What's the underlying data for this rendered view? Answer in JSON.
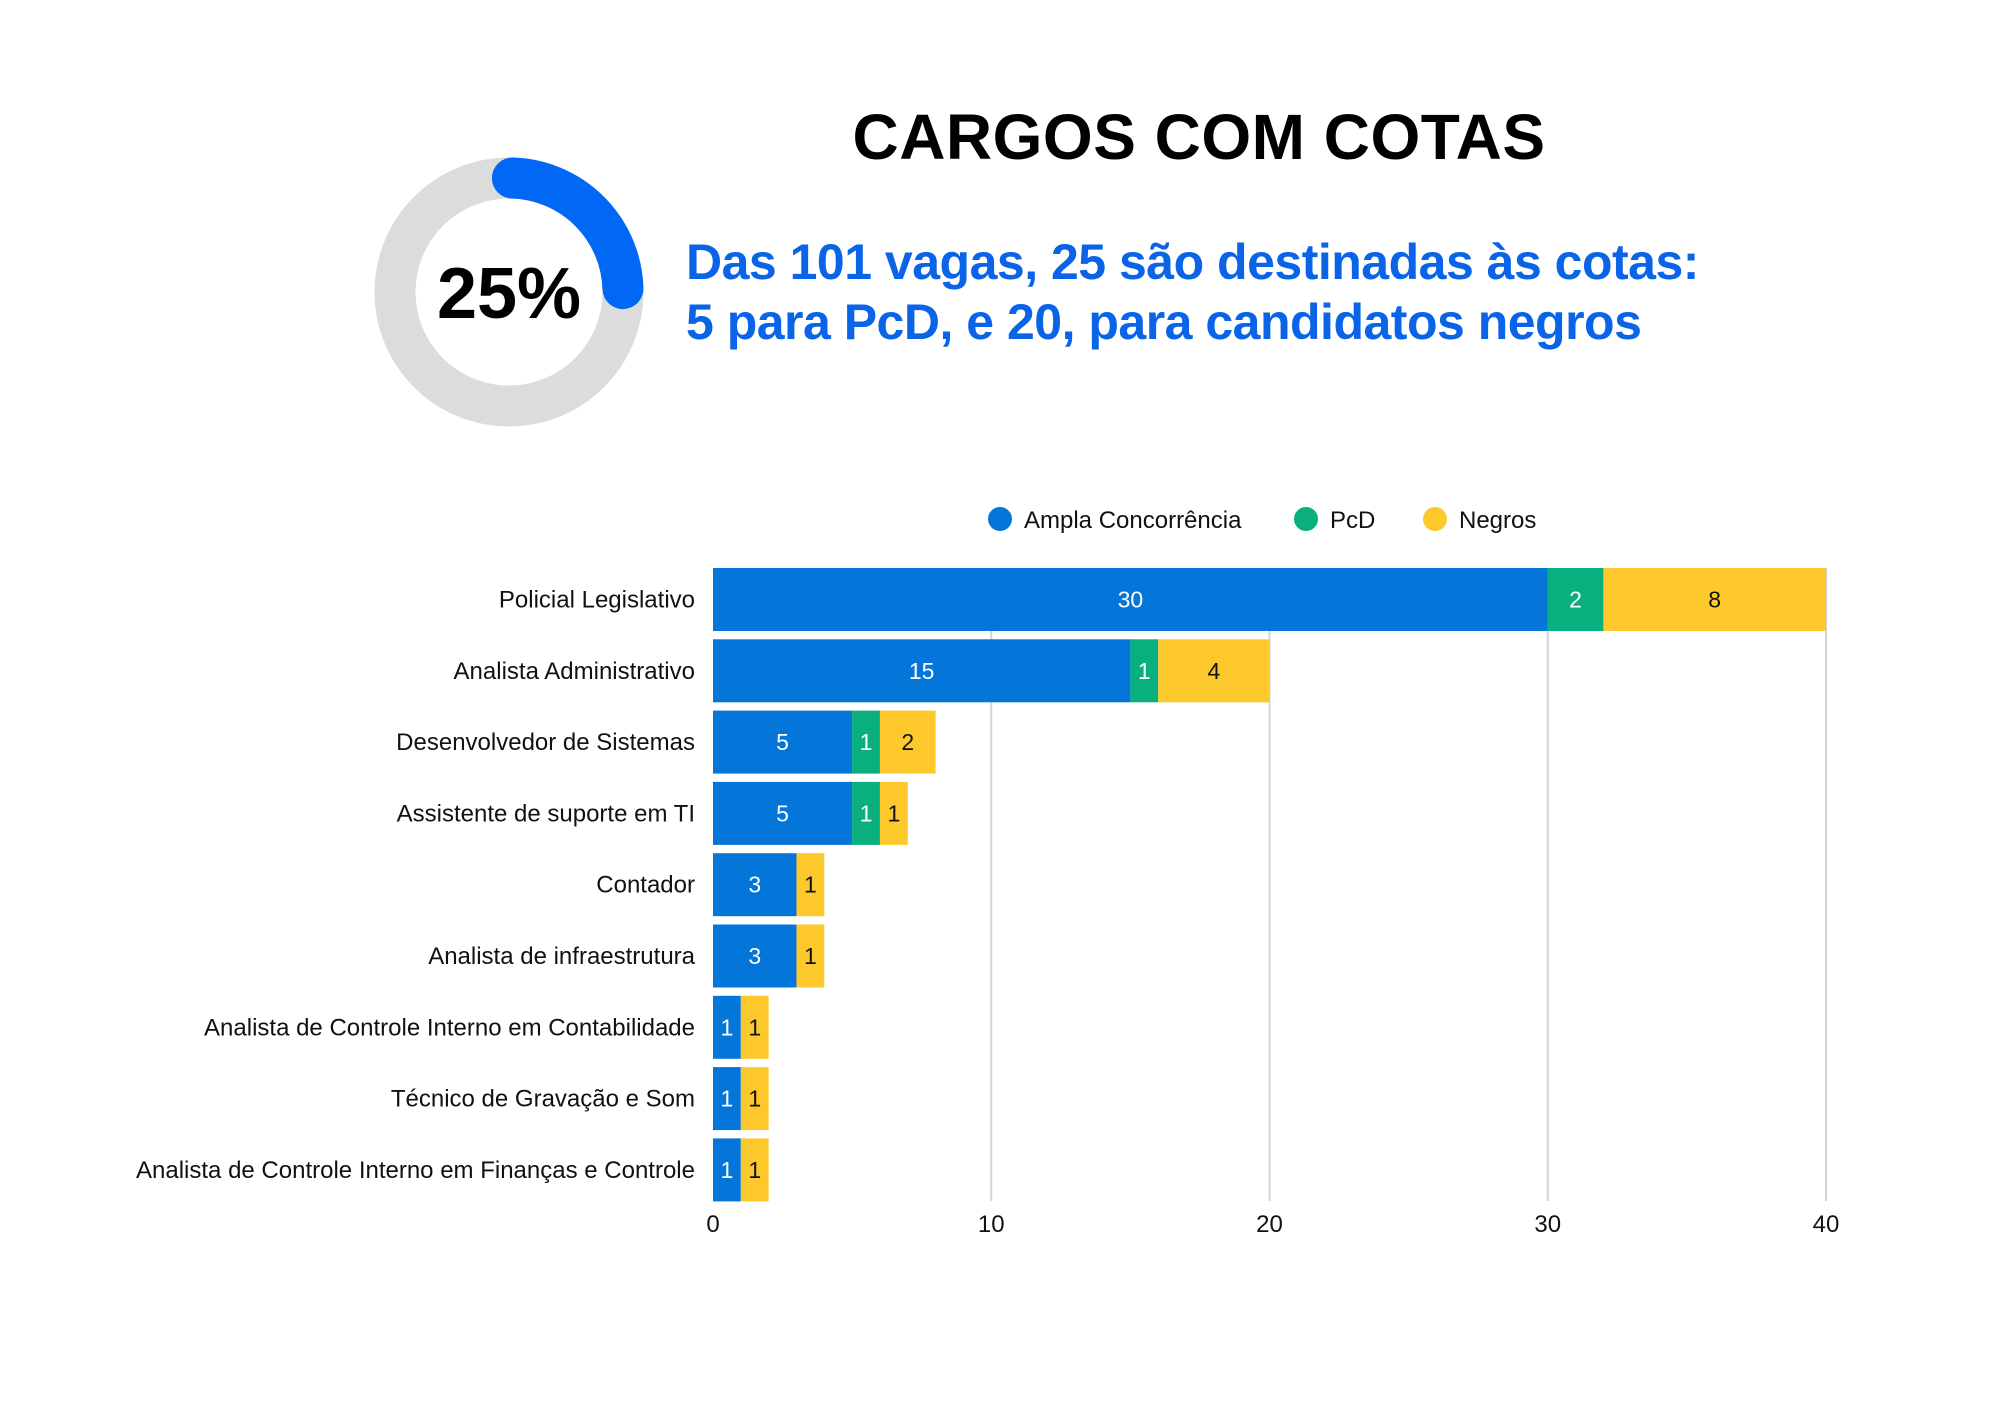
{
  "header": {
    "title": "CARGOS COM COTAS",
    "subtitle_lines": [
      "Das 101 vagas, 25 são destinadas às cotas:",
      "5 para PcD, e 20, para candidatos negros"
    ]
  },
  "donut": {
    "label": "25%",
    "value_percent": 25,
    "colors": {
      "fill": "#0068f5",
      "track": "#dcdcdc"
    }
  },
  "chart_data": {
    "type": "bar",
    "orientation": "horizontal",
    "stacked": true,
    "categories": [
      "Policial Legislativo",
      "Analista Administrativo",
      "Desenvolvedor de Sistemas",
      "Assistente de suporte em TI",
      "Contador",
      "Analista de infraestrutura",
      "Analista de Controle Interno em Contabilidade",
      "Técnico de Gravação e Som",
      "Analista de Controle Interno em Finanças e Controle"
    ],
    "series": [
      {
        "name": "Ampla Concorrência",
        "color": "#0576d9",
        "label_color": "#ffffff",
        "values": [
          30,
          15,
          5,
          5,
          3,
          3,
          1,
          1,
          1
        ]
      },
      {
        "name": "PcD",
        "color": "#0aaf7e",
        "label_color": "#ffffff",
        "values": [
          2,
          1,
          1,
          1,
          0,
          0,
          0,
          0,
          0
        ]
      },
      {
        "name": "Negros",
        "color": "#fdc82c",
        "label_color": "#111111",
        "values": [
          8,
          4,
          2,
          1,
          1,
          1,
          1,
          1,
          1
        ]
      }
    ],
    "xlim": [
      0,
      40
    ],
    "xticks": [
      0,
      10,
      20,
      30,
      40
    ],
    "grid": "vertical",
    "legend": "top",
    "title": "",
    "xlabel": "",
    "ylabel": ""
  }
}
